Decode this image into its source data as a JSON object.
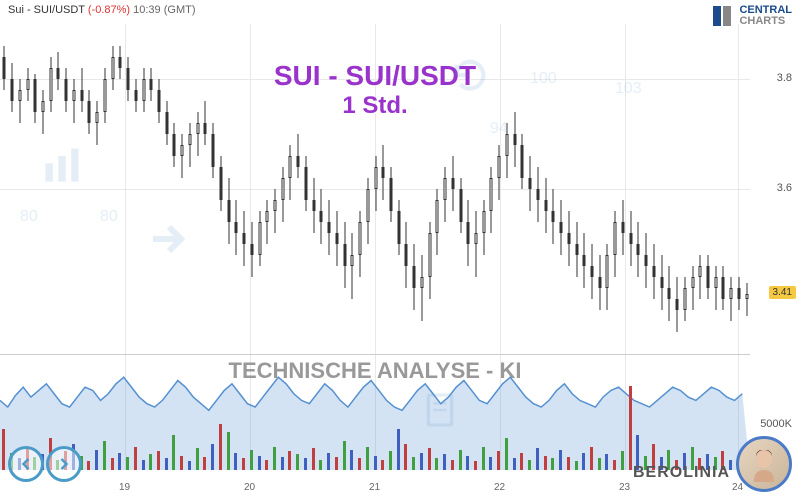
{
  "header": {
    "symbol": "Sui - SUI/USDT",
    "change": "(-0.87%)",
    "time": "10:39",
    "tz": "(GMT)"
  },
  "logo": {
    "line1": "CENTRAL",
    "line2": "CHARTS"
  },
  "title": {
    "main": "SUI - SUI/USDT",
    "sub": "1 Std."
  },
  "volume_title": "TECHNISCHE  ANALYSE - KI",
  "berolinia": "BEROLINIA",
  "price_chart": {
    "type": "candlestick",
    "ylim": [
      3.3,
      3.9
    ],
    "yticks": [
      3.6,
      3.8
    ],
    "current_price": "3.41",
    "background_color": "#ffffff",
    "grid_color": "#e8e8e8",
    "candle_up_fill": "#ffffff",
    "candle_down_fill": "#333333",
    "candle_border": "#333333",
    "title_color": "#9933cc",
    "candles": [
      {
        "o": 3.84,
        "h": 3.86,
        "l": 3.78,
        "c": 3.8
      },
      {
        "o": 3.8,
        "h": 3.83,
        "l": 3.74,
        "c": 3.76
      },
      {
        "o": 3.76,
        "h": 3.8,
        "l": 3.72,
        "c": 3.78
      },
      {
        "o": 3.78,
        "h": 3.82,
        "l": 3.76,
        "c": 3.8
      },
      {
        "o": 3.8,
        "h": 3.81,
        "l": 3.72,
        "c": 3.74
      },
      {
        "o": 3.74,
        "h": 3.78,
        "l": 3.7,
        "c": 3.76
      },
      {
        "o": 3.76,
        "h": 3.84,
        "l": 3.74,
        "c": 3.82
      },
      {
        "o": 3.82,
        "h": 3.85,
        "l": 3.78,
        "c": 3.8
      },
      {
        "o": 3.8,
        "h": 3.82,
        "l": 3.74,
        "c": 3.76
      },
      {
        "o": 3.76,
        "h": 3.8,
        "l": 3.72,
        "c": 3.78
      },
      {
        "o": 3.78,
        "h": 3.82,
        "l": 3.74,
        "c": 3.76
      },
      {
        "o": 3.76,
        "h": 3.78,
        "l": 3.7,
        "c": 3.72
      },
      {
        "o": 3.72,
        "h": 3.76,
        "l": 3.68,
        "c": 3.74
      },
      {
        "o": 3.74,
        "h": 3.82,
        "l": 3.72,
        "c": 3.8
      },
      {
        "o": 3.8,
        "h": 3.86,
        "l": 3.78,
        "c": 3.84
      },
      {
        "o": 3.84,
        "h": 3.86,
        "l": 3.8,
        "c": 3.82
      },
      {
        "o": 3.82,
        "h": 3.84,
        "l": 3.76,
        "c": 3.78
      },
      {
        "o": 3.78,
        "h": 3.8,
        "l": 3.74,
        "c": 3.76
      },
      {
        "o": 3.76,
        "h": 3.82,
        "l": 3.74,
        "c": 3.8
      },
      {
        "o": 3.8,
        "h": 3.82,
        "l": 3.76,
        "c": 3.78
      },
      {
        "o": 3.78,
        "h": 3.8,
        "l": 3.72,
        "c": 3.74
      },
      {
        "o": 3.74,
        "h": 3.76,
        "l": 3.68,
        "c": 3.7
      },
      {
        "o": 3.7,
        "h": 3.72,
        "l": 3.64,
        "c": 3.66
      },
      {
        "o": 3.66,
        "h": 3.7,
        "l": 3.62,
        "c": 3.68
      },
      {
        "o": 3.68,
        "h": 3.72,
        "l": 3.64,
        "c": 3.7
      },
      {
        "o": 3.7,
        "h": 3.74,
        "l": 3.66,
        "c": 3.72
      },
      {
        "o": 3.72,
        "h": 3.76,
        "l": 3.68,
        "c": 3.7
      },
      {
        "o": 3.7,
        "h": 3.72,
        "l": 3.62,
        "c": 3.64
      },
      {
        "o": 3.64,
        "h": 3.66,
        "l": 3.56,
        "c": 3.58
      },
      {
        "o": 3.58,
        "h": 3.62,
        "l": 3.5,
        "c": 3.54
      },
      {
        "o": 3.54,
        "h": 3.58,
        "l": 3.48,
        "c": 3.52
      },
      {
        "o": 3.52,
        "h": 3.56,
        "l": 3.46,
        "c": 3.5
      },
      {
        "o": 3.5,
        "h": 3.54,
        "l": 3.44,
        "c": 3.48
      },
      {
        "o": 3.48,
        "h": 3.56,
        "l": 3.46,
        "c": 3.54
      },
      {
        "o": 3.54,
        "h": 3.58,
        "l": 3.5,
        "c": 3.56
      },
      {
        "o": 3.56,
        "h": 3.6,
        "l": 3.52,
        "c": 3.58
      },
      {
        "o": 3.58,
        "h": 3.64,
        "l": 3.54,
        "c": 3.62
      },
      {
        "o": 3.62,
        "h": 3.68,
        "l": 3.58,
        "c": 3.66
      },
      {
        "o": 3.66,
        "h": 3.7,
        "l": 3.62,
        "c": 3.64
      },
      {
        "o": 3.64,
        "h": 3.66,
        "l": 3.56,
        "c": 3.58
      },
      {
        "o": 3.58,
        "h": 3.62,
        "l": 3.52,
        "c": 3.56
      },
      {
        "o": 3.56,
        "h": 3.6,
        "l": 3.5,
        "c": 3.54
      },
      {
        "o": 3.54,
        "h": 3.58,
        "l": 3.48,
        "c": 3.52
      },
      {
        "o": 3.52,
        "h": 3.56,
        "l": 3.46,
        "c": 3.5
      },
      {
        "o": 3.5,
        "h": 3.54,
        "l": 3.42,
        "c": 3.46
      },
      {
        "o": 3.46,
        "h": 3.52,
        "l": 3.4,
        "c": 3.48
      },
      {
        "o": 3.48,
        "h": 3.56,
        "l": 3.44,
        "c": 3.54
      },
      {
        "o": 3.54,
        "h": 3.62,
        "l": 3.5,
        "c": 3.6
      },
      {
        "o": 3.6,
        "h": 3.66,
        "l": 3.56,
        "c": 3.64
      },
      {
        "o": 3.64,
        "h": 3.68,
        "l": 3.58,
        "c": 3.62
      },
      {
        "o": 3.62,
        "h": 3.64,
        "l": 3.54,
        "c": 3.56
      },
      {
        "o": 3.56,
        "h": 3.58,
        "l": 3.48,
        "c": 3.5
      },
      {
        "o": 3.5,
        "h": 3.54,
        "l": 3.42,
        "c": 3.46
      },
      {
        "o": 3.46,
        "h": 3.5,
        "l": 3.38,
        "c": 3.42
      },
      {
        "o": 3.42,
        "h": 3.48,
        "l": 3.36,
        "c": 3.44
      },
      {
        "o": 3.44,
        "h": 3.54,
        "l": 3.4,
        "c": 3.52
      },
      {
        "o": 3.52,
        "h": 3.6,
        "l": 3.48,
        "c": 3.58
      },
      {
        "o": 3.58,
        "h": 3.64,
        "l": 3.54,
        "c": 3.62
      },
      {
        "o": 3.62,
        "h": 3.66,
        "l": 3.56,
        "c": 3.6
      },
      {
        "o": 3.6,
        "h": 3.62,
        "l": 3.52,
        "c": 3.54
      },
      {
        "o": 3.54,
        "h": 3.58,
        "l": 3.46,
        "c": 3.5
      },
      {
        "o": 3.5,
        "h": 3.56,
        "l": 3.44,
        "c": 3.52
      },
      {
        "o": 3.52,
        "h": 3.58,
        "l": 3.48,
        "c": 3.56
      },
      {
        "o": 3.56,
        "h": 3.64,
        "l": 3.52,
        "c": 3.62
      },
      {
        "o": 3.62,
        "h": 3.68,
        "l": 3.58,
        "c": 3.66
      },
      {
        "o": 3.66,
        "h": 3.72,
        "l": 3.62,
        "c": 3.7
      },
      {
        "o": 3.7,
        "h": 3.74,
        "l": 3.64,
        "c": 3.68
      },
      {
        "o": 3.68,
        "h": 3.7,
        "l": 3.6,
        "c": 3.62
      },
      {
        "o": 3.62,
        "h": 3.66,
        "l": 3.56,
        "c": 3.6
      },
      {
        "o": 3.6,
        "h": 3.64,
        "l": 3.54,
        "c": 3.58
      },
      {
        "o": 3.58,
        "h": 3.62,
        "l": 3.52,
        "c": 3.56
      },
      {
        "o": 3.56,
        "h": 3.6,
        "l": 3.5,
        "c": 3.54
      },
      {
        "o": 3.54,
        "h": 3.58,
        "l": 3.48,
        "c": 3.52
      },
      {
        "o": 3.52,
        "h": 3.56,
        "l": 3.46,
        "c": 3.5
      },
      {
        "o": 3.5,
        "h": 3.54,
        "l": 3.44,
        "c": 3.48
      },
      {
        "o": 3.48,
        "h": 3.52,
        "l": 3.42,
        "c": 3.46
      },
      {
        "o": 3.46,
        "h": 3.5,
        "l": 3.4,
        "c": 3.44
      },
      {
        "o": 3.44,
        "h": 3.48,
        "l": 3.38,
        "c": 3.42
      },
      {
        "o": 3.42,
        "h": 3.5,
        "l": 3.38,
        "c": 3.48
      },
      {
        "o": 3.48,
        "h": 3.56,
        "l": 3.44,
        "c": 3.54
      },
      {
        "o": 3.54,
        "h": 3.58,
        "l": 3.48,
        "c": 3.52
      },
      {
        "o": 3.52,
        "h": 3.56,
        "l": 3.46,
        "c": 3.5
      },
      {
        "o": 3.5,
        "h": 3.54,
        "l": 3.44,
        "c": 3.48
      },
      {
        "o": 3.48,
        "h": 3.52,
        "l": 3.42,
        "c": 3.46
      },
      {
        "o": 3.46,
        "h": 3.5,
        "l": 3.4,
        "c": 3.44
      },
      {
        "o": 3.44,
        "h": 3.48,
        "l": 3.38,
        "c": 3.42
      },
      {
        "o": 3.42,
        "h": 3.46,
        "l": 3.36,
        "c": 3.4
      },
      {
        "o": 3.4,
        "h": 3.44,
        "l": 3.34,
        "c": 3.38
      },
      {
        "o": 3.38,
        "h": 3.44,
        "l": 3.36,
        "c": 3.42
      },
      {
        "o": 3.42,
        "h": 3.46,
        "l": 3.38,
        "c": 3.44
      },
      {
        "o": 3.44,
        "h": 3.48,
        "l": 3.4,
        "c": 3.46
      },
      {
        "o": 3.46,
        "h": 3.48,
        "l": 3.4,
        "c": 3.42
      },
      {
        "o": 3.42,
        "h": 3.46,
        "l": 3.38,
        "c": 3.44
      },
      {
        "o": 3.44,
        "h": 3.46,
        "l": 3.38,
        "c": 3.4
      },
      {
        "o": 3.4,
        "h": 3.44,
        "l": 3.36,
        "c": 3.42
      },
      {
        "o": 3.42,
        "h": 3.44,
        "l": 3.38,
        "c": 3.4
      },
      {
        "o": 3.4,
        "h": 3.43,
        "l": 3.37,
        "c": 3.41
      }
    ]
  },
  "volume_chart": {
    "type": "bar+line",
    "ylabel": "5000K",
    "ylim": [
      0,
      8000
    ],
    "bar_colors": [
      "#c04040",
      "#40a040",
      "#4060c0"
    ],
    "line_color": "#5590d0",
    "fill_color": "rgba(85,144,208,0.25)",
    "oscillator": [
      42,
      38,
      45,
      50,
      44,
      48,
      52,
      46,
      40,
      38,
      44,
      50,
      48,
      42,
      46,
      52,
      56,
      50,
      44,
      40,
      38,
      42,
      48,
      54,
      50,
      44,
      40,
      36,
      42,
      48,
      52,
      46,
      40,
      38,
      44,
      50,
      56,
      52,
      46,
      42,
      40,
      46,
      52,
      48,
      42,
      38,
      44,
      50,
      54,
      48,
      42,
      38,
      36,
      42,
      48,
      52,
      46,
      40,
      44,
      50,
      54,
      48,
      42,
      40,
      46,
      52,
      56,
      50,
      44,
      40,
      38,
      42,
      48,
      52,
      46,
      42,
      40,
      38,
      44,
      48,
      50,
      46,
      42,
      40,
      38,
      42,
      46,
      50,
      48,
      44,
      42,
      46,
      50,
      48,
      44,
      42,
      46
    ],
    "volumes": [
      {
        "v": 2800,
        "c": 0
      },
      {
        "v": 1200,
        "c": 1
      },
      {
        "v": 800,
        "c": 2
      },
      {
        "v": 1600,
        "c": 0
      },
      {
        "v": 900,
        "c": 1
      },
      {
        "v": 1100,
        "c": 2
      },
      {
        "v": 2200,
        "c": 0
      },
      {
        "v": 700,
        "c": 1
      },
      {
        "v": 1300,
        "c": 0
      },
      {
        "v": 1800,
        "c": 2
      },
      {
        "v": 1000,
        "c": 1
      },
      {
        "v": 600,
        "c": 0
      },
      {
        "v": 1400,
        "c": 2
      },
      {
        "v": 2000,
        "c": 1
      },
      {
        "v": 800,
        "c": 0
      },
      {
        "v": 1200,
        "c": 2
      },
      {
        "v": 900,
        "c": 1
      },
      {
        "v": 1600,
        "c": 0
      },
      {
        "v": 700,
        "c": 2
      },
      {
        "v": 1100,
        "c": 1
      },
      {
        "v": 1300,
        "c": 0
      },
      {
        "v": 800,
        "c": 2
      },
      {
        "v": 2400,
        "c": 1
      },
      {
        "v": 1000,
        "c": 0
      },
      {
        "v": 600,
        "c": 2
      },
      {
        "v": 1500,
        "c": 1
      },
      {
        "v": 900,
        "c": 0
      },
      {
        "v": 1800,
        "c": 2
      },
      {
        "v": 3200,
        "c": 0
      },
      {
        "v": 2600,
        "c": 1
      },
      {
        "v": 1200,
        "c": 2
      },
      {
        "v": 800,
        "c": 0
      },
      {
        "v": 1400,
        "c": 1
      },
      {
        "v": 1000,
        "c": 2
      },
      {
        "v": 700,
        "c": 0
      },
      {
        "v": 1600,
        "c": 1
      },
      {
        "v": 900,
        "c": 2
      },
      {
        "v": 1300,
        "c": 0
      },
      {
        "v": 1100,
        "c": 1
      },
      {
        "v": 800,
        "c": 2
      },
      {
        "v": 1500,
        "c": 0
      },
      {
        "v": 700,
        "c": 1
      },
      {
        "v": 1200,
        "c": 2
      },
      {
        "v": 900,
        "c": 0
      },
      {
        "v": 2000,
        "c": 1
      },
      {
        "v": 1400,
        "c": 2
      },
      {
        "v": 800,
        "c": 0
      },
      {
        "v": 1600,
        "c": 1
      },
      {
        "v": 1000,
        "c": 2
      },
      {
        "v": 700,
        "c": 0
      },
      {
        "v": 1300,
        "c": 1
      },
      {
        "v": 2800,
        "c": 2
      },
      {
        "v": 1800,
        "c": 0
      },
      {
        "v": 900,
        "c": 1
      },
      {
        "v": 1200,
        "c": 2
      },
      {
        "v": 1500,
        "c": 0
      },
      {
        "v": 800,
        "c": 1
      },
      {
        "v": 1100,
        "c": 2
      },
      {
        "v": 700,
        "c": 0
      },
      {
        "v": 1400,
        "c": 1
      },
      {
        "v": 1000,
        "c": 2
      },
      {
        "v": 600,
        "c": 0
      },
      {
        "v": 1600,
        "c": 1
      },
      {
        "v": 900,
        "c": 2
      },
      {
        "v": 1300,
        "c": 0
      },
      {
        "v": 2200,
        "c": 1
      },
      {
        "v": 800,
        "c": 2
      },
      {
        "v": 1200,
        "c": 0
      },
      {
        "v": 700,
        "c": 1
      },
      {
        "v": 1500,
        "c": 2
      },
      {
        "v": 1000,
        "c": 0
      },
      {
        "v": 800,
        "c": 1
      },
      {
        "v": 1400,
        "c": 2
      },
      {
        "v": 900,
        "c": 0
      },
      {
        "v": 600,
        "c": 1
      },
      {
        "v": 1200,
        "c": 2
      },
      {
        "v": 1600,
        "c": 0
      },
      {
        "v": 800,
        "c": 1
      },
      {
        "v": 1100,
        "c": 2
      },
      {
        "v": 700,
        "c": 0
      },
      {
        "v": 1300,
        "c": 1
      },
      {
        "v": 5800,
        "c": 0
      },
      {
        "v": 2400,
        "c": 2
      },
      {
        "v": 1000,
        "c": 1
      },
      {
        "v": 1800,
        "c": 0
      },
      {
        "v": 900,
        "c": 2
      },
      {
        "v": 1400,
        "c": 1
      },
      {
        "v": 700,
        "c": 0
      },
      {
        "v": 1200,
        "c": 2
      },
      {
        "v": 1600,
        "c": 1
      },
      {
        "v": 800,
        "c": 0
      },
      {
        "v": 1100,
        "c": 2
      },
      {
        "v": 900,
        "c": 1
      },
      {
        "v": 1300,
        "c": 0
      },
      {
        "v": 700,
        "c": 2
      },
      {
        "v": 1000,
        "c": 1
      },
      {
        "v": 1200,
        "c": 0
      }
    ]
  },
  "x_axis": {
    "labels": [
      {
        "pos": 125,
        "text": "19"
      },
      {
        "pos": 250,
        "text": "20"
      },
      {
        "pos": 375,
        "text": "21"
      },
      {
        "pos": 500,
        "text": "22"
      },
      {
        "pos": 625,
        "text": "23"
      },
      {
        "pos": 738,
        "text": "24"
      }
    ]
  },
  "watermarks": {
    "labels": [
      "80",
      "80",
      "94",
      "100",
      "103"
    ]
  }
}
